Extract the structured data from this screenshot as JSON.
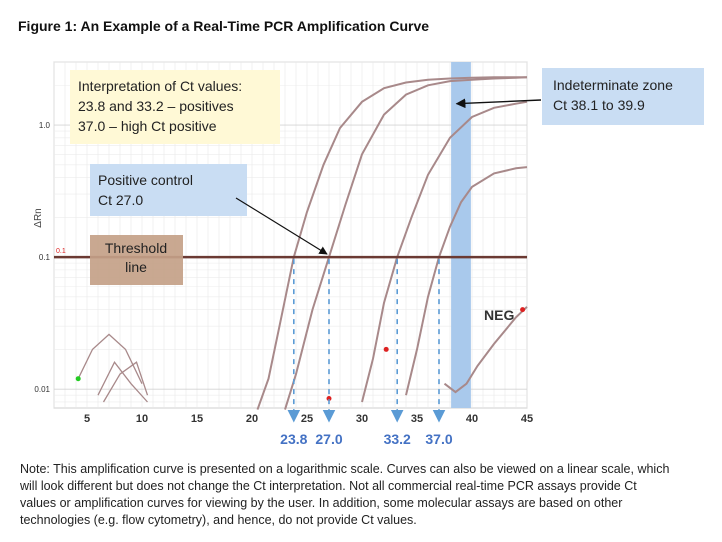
{
  "figure_title": "Figure 1:  An Example of a Real-Time PCR Amplification Curve",
  "note": "Note: This amplification curve is presented on a logarithmic scale. Curves can also be viewed on a linear scale, which will look different but does not change the Ct interpretation. Not all commercial real-time PCR assays provide Ct values or amplification curves for viewing by the user. In addition, some molecular assays are based on other technologies (e.g. flow cytometry), and hence, do not provide Ct values.",
  "colors": {
    "curve": "#a8898a",
    "threshold": "#6b3a33",
    "zone": "#a9c9ec",
    "arrow": "#5b9bd5",
    "ct_text": "#4472c4",
    "yellow_box": "#fff9d6",
    "blue_box": "#c9ddf3",
    "brown_box": "#c4a188"
  },
  "chart_data": {
    "type": "line",
    "title": "",
    "xlabel": "",
    "ylabel": "ΔRn",
    "yscale": "log",
    "xlim": [
      2,
      45
    ],
    "ylim": [
      0.0072,
      3
    ],
    "x_ticks": [
      5,
      10,
      15,
      20,
      25,
      30,
      35,
      40,
      45
    ],
    "y_ticks": [
      0.01,
      0.1,
      1.0
    ],
    "y_tick_labels": [
      "0.01",
      "0.1",
      "1.0"
    ],
    "grid": true,
    "threshold": {
      "value": 0.1,
      "marker_label": "0.1",
      "label": "Threshold line"
    },
    "indeterminate_zone": {
      "x_range": [
        38.1,
        39.9
      ],
      "label_line1": "Indeterminate zone",
      "label_line2": "Ct 38.1 to 39.9"
    },
    "ct_values": [
      {
        "label": "23.8",
        "x": 23.8
      },
      {
        "label": "27.0",
        "x": 27.0
      },
      {
        "label": "33.2",
        "x": 33.2
      },
      {
        "label": "37.0",
        "x": 37.0
      }
    ],
    "interpretation": {
      "line1": "Interpretation of Ct values:",
      "line2": "23.8 and 33.2 – positives",
      "line3": "37.0 – high Ct positive"
    },
    "positive_control": {
      "line1": "Positive control",
      "line2": "Ct 27.0",
      "x": 27.0
    },
    "neg_label": "NEG",
    "series": [
      {
        "ct": 23.8,
        "x": [
          20.5,
          21.5,
          22.5,
          23.8,
          25,
          26.5,
          28,
          30,
          32,
          34,
          36,
          38,
          40,
          42,
          44,
          45
        ],
        "y": [
          0.007,
          0.012,
          0.03,
          0.1,
          0.22,
          0.5,
          0.95,
          1.5,
          1.9,
          2.1,
          2.2,
          2.25,
          2.28,
          2.3,
          2.3,
          2.3
        ]
      },
      {
        "ct": 27.0,
        "x": [
          23,
          24,
          25.5,
          27,
          28.5,
          30,
          32,
          34,
          36,
          38,
          40,
          42,
          44,
          45
        ],
        "y": [
          0.007,
          0.013,
          0.04,
          0.1,
          0.25,
          0.6,
          1.2,
          1.7,
          2.0,
          2.15,
          2.2,
          2.25,
          2.28,
          2.3
        ]
      },
      {
        "ct": 33.2,
        "x": [
          30,
          31,
          32,
          33.2,
          34.5,
          36,
          38,
          40,
          42,
          44,
          45
        ],
        "y": [
          0.008,
          0.017,
          0.045,
          0.1,
          0.2,
          0.42,
          0.8,
          1.15,
          1.35,
          1.45,
          1.5
        ]
      },
      {
        "ct": 37.0,
        "x": [
          34,
          35,
          36,
          37,
          38,
          39,
          40,
          42,
          44,
          45
        ],
        "y": [
          0.009,
          0.02,
          0.05,
          0.1,
          0.17,
          0.26,
          0.34,
          0.43,
          0.47,
          0.48
        ]
      },
      {
        "ct": null,
        "x": [
          37.5,
          38.5,
          39.5,
          40.5,
          42,
          44,
          45
        ],
        "y": [
          0.011,
          0.0095,
          0.011,
          0.015,
          0.022,
          0.035,
          0.042
        ]
      }
    ],
    "noise_curves": [
      {
        "x": [
          4.2,
          5.5,
          7,
          8.5,
          10
        ],
        "y": [
          0.012,
          0.02,
          0.026,
          0.02,
          0.011
        ]
      },
      {
        "x": [
          6.5,
          8,
          9.5,
          10.5
        ],
        "y": [
          0.008,
          0.013,
          0.016,
          0.009
        ]
      },
      {
        "x": [
          6,
          7.5,
          9,
          10.5
        ],
        "y": [
          0.009,
          0.016,
          0.011,
          0.008
        ]
      }
    ]
  }
}
